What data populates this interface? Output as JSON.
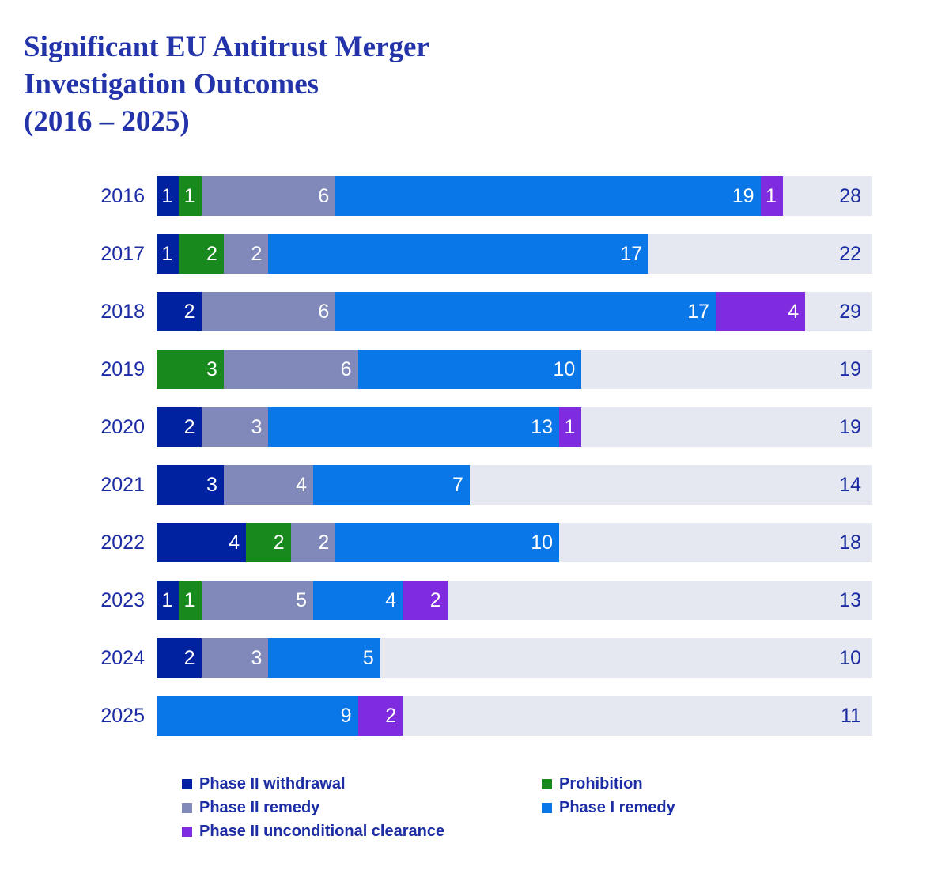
{
  "header": {
    "lines": [
      "Significant EU Antitrust Merger",
      "Investigation Outcomes",
      "(2016 – 2025)"
    ]
  },
  "colors": {
    "title_text": "#2334ab",
    "axis_text": "#1c2ca4",
    "total_text": "#1b2ca2",
    "segment_label_text": "#ffffff",
    "track": "#e5e8f0",
    "background": "#ffffff"
  },
  "chart_data": {
    "type": "bar",
    "orientation": "horizontal-stacked",
    "title": "Significant EU Antitrust Merger Investigation Outcomes (2016 – 2025)",
    "categories": [
      "2016",
      "2017",
      "2018",
      "2019",
      "2020",
      "2021",
      "2022",
      "2023",
      "2024",
      "2025"
    ],
    "series": [
      {
        "name": "Phase II withdrawal",
        "color": "#0022a0",
        "values": [
          1,
          1,
          2,
          0,
          2,
          3,
          4,
          1,
          2,
          0
        ]
      },
      {
        "name": "Prohibition",
        "color": "#17891d",
        "values": [
          1,
          2,
          0,
          3,
          0,
          0,
          2,
          1,
          0,
          0
        ]
      },
      {
        "name": "Phase II remedy",
        "color": "#8089b9",
        "values": [
          6,
          2,
          6,
          6,
          3,
          4,
          2,
          5,
          3,
          0
        ]
      },
      {
        "name": "Phase I remedy",
        "color": "#0a77e8",
        "values": [
          19,
          17,
          17,
          10,
          13,
          7,
          10,
          4,
          5,
          9
        ]
      },
      {
        "name": "Phase II unconditional clearance",
        "color": "#7f2be0",
        "values": [
          1,
          0,
          4,
          0,
          1,
          0,
          0,
          2,
          0,
          2
        ]
      }
    ],
    "totals": [
      28,
      22,
      29,
      19,
      19,
      14,
      18,
      13,
      10,
      11
    ],
    "xmax": 32,
    "grid": false,
    "value_labels": "inside-end-white",
    "total_labels": "inside-track-right",
    "legend": {
      "position": "bottom",
      "left_column": [
        0,
        2,
        4
      ],
      "right_column": [
        1,
        3
      ]
    }
  }
}
